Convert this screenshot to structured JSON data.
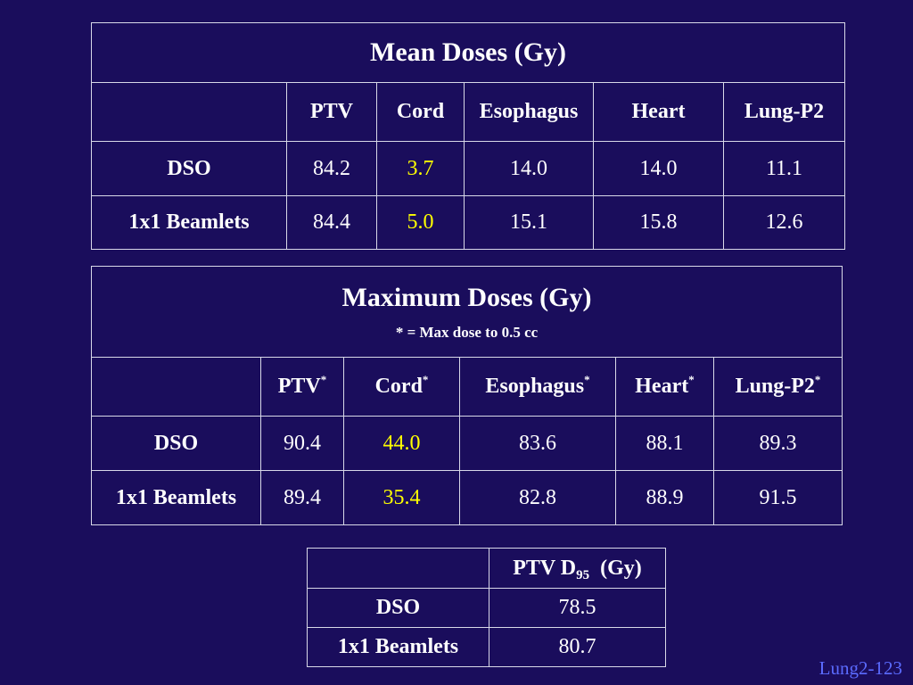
{
  "mean_table": {
    "title": "Mean Doses (Gy)",
    "columns": [
      "PTV",
      "Cord",
      "Esophagus",
      "Heart",
      "Lung-P2"
    ],
    "rows": [
      {
        "label": "DSO",
        "values": [
          "84.2",
          "3.7",
          "14.0",
          "14.0",
          "11.1"
        ]
      },
      {
        "label": "1x1 Beamlets",
        "values": [
          "84.4",
          "5.0",
          "15.1",
          "15.8",
          "12.6"
        ]
      }
    ]
  },
  "max_table": {
    "title": "Maximum Doses (Gy)",
    "note": "* = Max dose to 0.5 cc",
    "asterisk": "*",
    "columns": [
      "PTV",
      "Cord",
      "Esophagus",
      "Heart",
      "Lung-P2"
    ],
    "rows": [
      {
        "label": "DSO",
        "values": [
          "90.4",
          "44.0",
          "83.6",
          "88.1",
          "89.3"
        ]
      },
      {
        "label": "1x1 Beamlets",
        "values": [
          "89.4",
          "35.4",
          "82.8",
          "88.9",
          "91.5"
        ]
      }
    ]
  },
  "d95_table": {
    "header_prefix": "PTV D",
    "header_sub": "95",
    "header_unit": "(Gy)",
    "rows": [
      {
        "label": "DSO",
        "value": "78.5"
      },
      {
        "label": "1x1 Beamlets",
        "value": "80.7"
      }
    ]
  },
  "colors": {
    "background": "#1a0d5c",
    "text": "#ffffff",
    "highlight": "#ffff00",
    "slide_id": "#5b6bff",
    "border": "#d8d8e8"
  },
  "slide_id": "Lung2-123"
}
